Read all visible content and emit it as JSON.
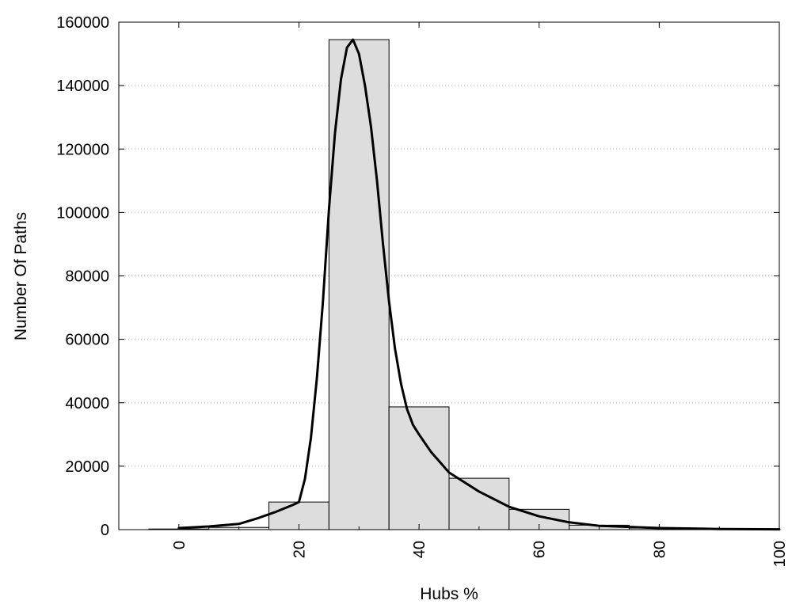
{
  "chart_data": {
    "type": "bar",
    "title": "",
    "xlabel": "Hubs %",
    "ylabel": "Number Of Paths",
    "xlim": [
      -10,
      100
    ],
    "ylim": [
      0,
      160000
    ],
    "x_ticks": [
      0,
      20,
      40,
      60,
      80,
      100
    ],
    "y_ticks": [
      0,
      20000,
      40000,
      60000,
      80000,
      100000,
      120000,
      140000,
      160000
    ],
    "grid": "horizontal-dotted",
    "legend": "none",
    "bin_width": 10,
    "bars": [
      {
        "x": 0,
        "value": 200
      },
      {
        "x": 10,
        "value": 700
      },
      {
        "x": 20,
        "value": 8700
      },
      {
        "x": 30,
        "value": 154500
      },
      {
        "x": 40,
        "value": 38700
      },
      {
        "x": 50,
        "value": 16200
      },
      {
        "x": 60,
        "value": 6400
      },
      {
        "x": 70,
        "value": 1400
      },
      {
        "x": 80,
        "value": 500
      },
      {
        "x": 90,
        "value": 200
      }
    ],
    "curve": {
      "x": [
        0,
        5,
        10,
        13,
        16,
        19,
        20,
        21,
        22,
        23,
        24,
        25,
        26,
        27,
        28,
        29,
        30,
        31,
        32,
        33,
        34,
        35,
        36,
        37,
        38,
        39,
        40,
        42,
        45,
        50,
        55,
        60,
        65,
        70,
        80,
        90,
        100
      ],
      "y": [
        500,
        1000,
        1800,
        3500,
        5500,
        7800,
        8700,
        16000,
        29000,
        48000,
        72000,
        101000,
        125000,
        142000,
        152000,
        154500,
        150000,
        140000,
        127000,
        110000,
        90000,
        72000,
        57000,
        46000,
        38000,
        33000,
        30000,
        24500,
        18000,
        12000,
        7200,
        4200,
        2300,
        1200,
        500,
        200,
        100
      ]
    },
    "colors": {
      "bar_fill": "#dddddd",
      "bar_stroke": "#000000",
      "curve": "#000000",
      "grid": "#bbbbbb"
    }
  }
}
